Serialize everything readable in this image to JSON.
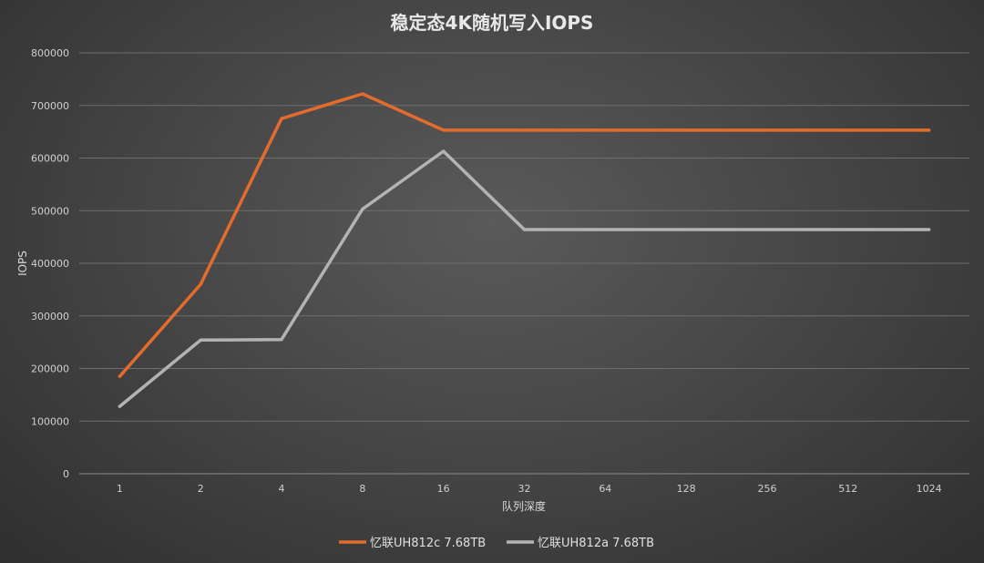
{
  "chart_data": {
    "type": "line",
    "title": "稳定态4K随机写入IOPS",
    "xlabel": "队列深度",
    "ylabel": "IOPS",
    "categories": [
      "1",
      "2",
      "4",
      "8",
      "16",
      "32",
      "64",
      "128",
      "256",
      "512",
      "1024"
    ],
    "ylim": [
      0,
      800000
    ],
    "yticks": [
      0,
      100000,
      200000,
      300000,
      400000,
      500000,
      600000,
      700000,
      800000
    ],
    "ytick_labels": [
      "0",
      "100000",
      "200000",
      "300000",
      "400000",
      "500000",
      "600000",
      "700000",
      "800000"
    ],
    "grid": true,
    "legend_position": "bottom",
    "series": [
      {
        "name": "忆联UH812c 7.68TB",
        "color": "#e36c2d",
        "values": [
          185000,
          360000,
          675000,
          722000,
          653000,
          653000,
          653000,
          653000,
          653000,
          653000,
          653000
        ]
      },
      {
        "name": "忆联UH812a 7.68TB",
        "color": "#b3b3b3",
        "values": [
          128000,
          254000,
          255000,
          503000,
          613000,
          464000,
          464000,
          464000,
          464000,
          464000,
          464000
        ]
      }
    ]
  }
}
